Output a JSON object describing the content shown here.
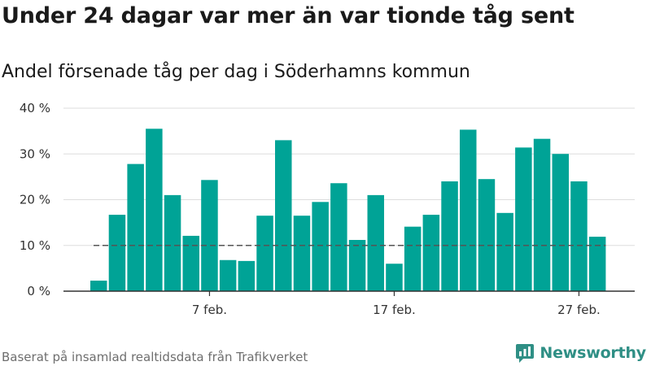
{
  "title": "Under 24 dagar var mer än var tionde tåg sent",
  "subtitle": "Andel försenade tåg per dag i Söderhamns kommun",
  "footer": "Baserat på insamlad realtidsdata från Trafikverket",
  "brand": {
    "name": "Newsworthy",
    "icon": "newsworthy-logo-icon"
  },
  "colors": {
    "bar": "#00a396",
    "grid": "#dddddd",
    "axis": "#333333",
    "reference_line": "#555555"
  },
  "chart_data": {
    "type": "bar",
    "x_unit": "day",
    "x": [
      "1 feb.",
      "2 feb.",
      "3 feb.",
      "4 feb.",
      "5 feb.",
      "6 feb.",
      "7 feb.",
      "8 feb.",
      "9 feb.",
      "10 feb.",
      "11 feb.",
      "12 feb.",
      "13 feb.",
      "14 feb.",
      "15 feb.",
      "16 feb.",
      "17 feb.",
      "18 feb.",
      "19 feb.",
      "20 feb.",
      "21 feb.",
      "22 feb.",
      "23 feb.",
      "24 feb.",
      "25 feb.",
      "26 feb.",
      "27 feb.",
      "28 feb."
    ],
    "values": [
      2.3,
      16.7,
      27.8,
      35.5,
      21.0,
      12.1,
      24.3,
      6.8,
      6.6,
      16.5,
      33.0,
      16.5,
      19.5,
      23.6,
      11.2,
      21.0,
      6.0,
      14.1,
      16.7,
      24.0,
      35.3,
      24.5,
      17.1,
      31.4,
      33.3,
      30.0,
      24.0,
      11.9
    ],
    "reference_line": 10,
    "ylim": [
      0,
      40
    ],
    "yticks": [
      0,
      10,
      20,
      30,
      40
    ],
    "ytick_labels": [
      "0 %",
      "10 %",
      "20 %",
      "30 %",
      "40 %"
    ],
    "xtick_indices": [
      6,
      16,
      26
    ],
    "xtick_labels": [
      "7 feb.",
      "17 feb.",
      "27 feb."
    ],
    "grid": true,
    "legend": "none"
  }
}
